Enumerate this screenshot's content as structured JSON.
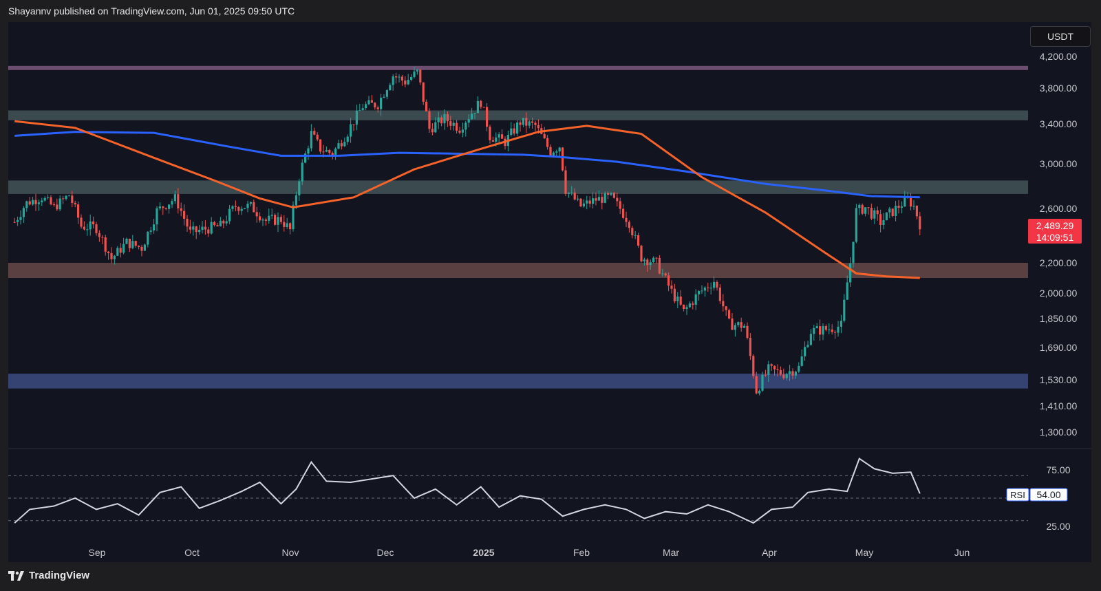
{
  "header": {
    "text": "Shayannv published on TradingView.com, Jun 01, 2025 09:50 UTC"
  },
  "footer": {
    "brand": "TradingView"
  },
  "price_axis": {
    "currency": "USDT"
  },
  "last_price": {
    "value": "2,489.29",
    "countdown": "14:09:51",
    "color": "#f23645"
  },
  "rsi_panel": {
    "label": "RSI",
    "value": "54.00"
  },
  "colors": {
    "background": "#121420",
    "up": "#26a69a",
    "down": "#ef5350",
    "ma_blue": "#2962ff",
    "ma_orange": "#f5632a",
    "rsi_line": "#d6d6e0"
  },
  "chart_data": [
    {
      "type": "candlestick",
      "y_ticks": [
        "4,200.00",
        "3,800.00",
        "3,400.00",
        "3,000.00",
        "2,600.00",
        "2,200.00",
        "2,000.00",
        "1,850.00",
        "1,690.00",
        "1,530.00",
        "1,410.00",
        "1,300.00"
      ],
      "x_ticks": [
        "Sep",
        "Oct",
        "Nov",
        "Dec",
        "2025",
        "Feb",
        "Mar",
        "Apr",
        "May",
        "Jun"
      ],
      "zones": [
        {
          "low": 4030,
          "high": 4080,
          "color": "#6b4e70"
        },
        {
          "low": 3440,
          "high": 3550,
          "color": "#3b4a4f"
        },
        {
          "low": 2730,
          "high": 2850,
          "color": "#3b4a4f"
        },
        {
          "low": 2100,
          "high": 2200,
          "color": "#5a4040"
        },
        {
          "low": 1490,
          "high": 1560,
          "color": "#354372"
        }
      ],
      "price_points": [
        [
          "2024-08-05",
          2500
        ],
        [
          "2024-08-09",
          2650
        ],
        [
          "2024-08-14",
          2700
        ],
        [
          "2024-08-18",
          2610
        ],
        [
          "2024-08-23",
          2720
        ],
        [
          "2024-08-27",
          2470
        ],
        [
          "2024-09-01",
          2460
        ],
        [
          "2024-09-06",
          2230
        ],
        [
          "2024-09-11",
          2350
        ],
        [
          "2024-09-16",
          2310
        ],
        [
          "2024-09-21",
          2580
        ],
        [
          "2024-09-27",
          2690
        ],
        [
          "2024-10-02",
          2420
        ],
        [
          "2024-10-07",
          2450
        ],
        [
          "2024-10-12",
          2470
        ],
        [
          "2024-10-17",
          2620
        ],
        [
          "2024-10-22",
          2620
        ],
        [
          "2024-10-27",
          2510
        ],
        [
          "2024-11-01",
          2520
        ],
        [
          "2024-11-04",
          2440
        ],
        [
          "2024-11-07",
          2880
        ],
        [
          "2024-11-11",
          3300
        ],
        [
          "2024-11-14",
          3150
        ],
        [
          "2024-11-18",
          3100
        ],
        [
          "2024-11-23",
          3320
        ],
        [
          "2024-11-28",
          3600
        ],
        [
          "2024-12-03",
          3620
        ],
        [
          "2024-12-08",
          3960
        ],
        [
          "2024-12-12",
          3880
        ],
        [
          "2024-12-16",
          4000
        ],
        [
          "2024-12-20",
          3350
        ],
        [
          "2024-12-25",
          3460
        ],
        [
          "2024-12-30",
          3360
        ],
        [
          "2025-01-06",
          3650
        ],
        [
          "2025-01-09",
          3280
        ],
        [
          "2025-01-14",
          3220
        ],
        [
          "2025-01-19",
          3420
        ],
        [
          "2025-01-24",
          3380
        ],
        [
          "2025-01-29",
          3120
        ],
        [
          "2025-02-01",
          3180
        ],
        [
          "2025-02-03",
          2770
        ],
        [
          "2025-02-08",
          2620
        ],
        [
          "2025-02-13",
          2680
        ],
        [
          "2025-02-18",
          2700
        ],
        [
          "2025-02-24",
          2500
        ],
        [
          "2025-02-28",
          2240
        ],
        [
          "2025-03-05",
          2200
        ],
        [
          "2025-03-10",
          2010
        ],
        [
          "2025-03-14",
          1890
        ],
        [
          "2025-03-19",
          2000
        ],
        [
          "2025-03-24",
          2080
        ],
        [
          "2025-03-29",
          1820
        ],
        [
          "2025-04-03",
          1810
        ],
        [
          "2025-04-07",
          1480
        ],
        [
          "2025-04-11",
          1580
        ],
        [
          "2025-04-16",
          1560
        ],
        [
          "2025-04-21",
          1590
        ],
        [
          "2025-04-25",
          1780
        ],
        [
          "2025-04-30",
          1790
        ],
        [
          "2025-05-05",
          1810
        ],
        [
          "2025-05-08",
          2200
        ],
        [
          "2025-05-10",
          2580
        ],
        [
          "2025-05-13",
          2610
        ],
        [
          "2025-05-18",
          2500
        ],
        [
          "2025-05-23",
          2600
        ],
        [
          "2025-05-27",
          2680
        ],
        [
          "2025-05-29",
          2620
        ],
        [
          "2025-05-31",
          2489.29
        ]
      ],
      "ma_blue": [
        [
          "2024-08-05",
          3280
        ],
        [
          "2024-08-25",
          3320
        ],
        [
          "2024-09-20",
          3310
        ],
        [
          "2024-10-15",
          3170
        ],
        [
          "2024-11-01",
          3080
        ],
        [
          "2024-11-20",
          3080
        ],
        [
          "2024-12-10",
          3110
        ],
        [
          "2024-12-31",
          3100
        ],
        [
          "2025-01-20",
          3090
        ],
        [
          "2025-01-31",
          3070
        ],
        [
          "2025-02-20",
          3020
        ],
        [
          "2025-03-15",
          2930
        ],
        [
          "2025-04-10",
          2820
        ],
        [
          "2025-04-30",
          2760
        ],
        [
          "2025-05-15",
          2710
        ],
        [
          "2025-05-31",
          2700
        ]
      ],
      "ma_orange": [
        [
          "2024-08-05",
          3430
        ],
        [
          "2024-08-25",
          3360
        ],
        [
          "2024-09-20",
          3060
        ],
        [
          "2024-10-10",
          2850
        ],
        [
          "2024-10-25",
          2690
        ],
        [
          "2024-11-05",
          2610
        ],
        [
          "2024-11-25",
          2700
        ],
        [
          "2024-12-15",
          2950
        ],
        [
          "2025-01-05",
          3140
        ],
        [
          "2025-01-25",
          3320
        ],
        [
          "2025-02-10",
          3380
        ],
        [
          "2025-02-28",
          3300
        ],
        [
          "2025-03-20",
          2880
        ],
        [
          "2025-04-10",
          2570
        ],
        [
          "2025-04-30",
          2270
        ],
        [
          "2025-05-10",
          2130
        ],
        [
          "2025-05-20",
          2110
        ],
        [
          "2025-05-31",
          2100
        ]
      ]
    },
    {
      "type": "line",
      "series_label": "RSI",
      "y_ticks": [
        "75.00",
        "25.00"
      ],
      "levels": [
        70,
        50,
        30
      ],
      "values": [
        [
          "2024-08-05",
          28
        ],
        [
          "2024-08-10",
          40
        ],
        [
          "2024-08-18",
          43
        ],
        [
          "2024-08-25",
          50
        ],
        [
          "2024-09-01",
          40
        ],
        [
          "2024-09-08",
          45
        ],
        [
          "2024-09-15",
          35
        ],
        [
          "2024-09-22",
          55
        ],
        [
          "2024-09-29",
          60
        ],
        [
          "2024-10-05",
          41
        ],
        [
          "2024-10-12",
          48
        ],
        [
          "2024-10-19",
          56
        ],
        [
          "2024-10-25",
          64
        ],
        [
          "2024-11-01",
          45
        ],
        [
          "2024-11-06",
          58
        ],
        [
          "2024-11-11",
          82
        ],
        [
          "2024-11-16",
          65
        ],
        [
          "2024-11-24",
          64
        ],
        [
          "2024-12-01",
          67
        ],
        [
          "2024-12-08",
          70
        ],
        [
          "2024-12-15",
          50
        ],
        [
          "2024-12-22",
          58
        ],
        [
          "2024-12-29",
          44
        ],
        [
          "2025-01-06",
          60
        ],
        [
          "2025-01-12",
          42
        ],
        [
          "2025-01-19",
          52
        ],
        [
          "2025-01-26",
          49
        ],
        [
          "2025-02-02",
          34
        ],
        [
          "2025-02-09",
          40
        ],
        [
          "2025-02-16",
          44
        ],
        [
          "2025-02-23",
          40
        ],
        [
          "2025-03-01",
          32
        ],
        [
          "2025-03-08",
          38
        ],
        [
          "2025-03-15",
          36
        ],
        [
          "2025-03-22",
          44
        ],
        [
          "2025-03-29",
          38
        ],
        [
          "2025-04-06",
          28
        ],
        [
          "2025-04-12",
          40
        ],
        [
          "2025-04-19",
          42
        ],
        [
          "2025-04-24",
          55
        ],
        [
          "2025-05-01",
          58
        ],
        [
          "2025-05-07",
          56
        ],
        [
          "2025-05-11",
          85
        ],
        [
          "2025-05-16",
          76
        ],
        [
          "2025-05-22",
          72
        ],
        [
          "2025-05-28",
          73
        ],
        [
          "2025-05-31",
          54
        ]
      ]
    }
  ]
}
